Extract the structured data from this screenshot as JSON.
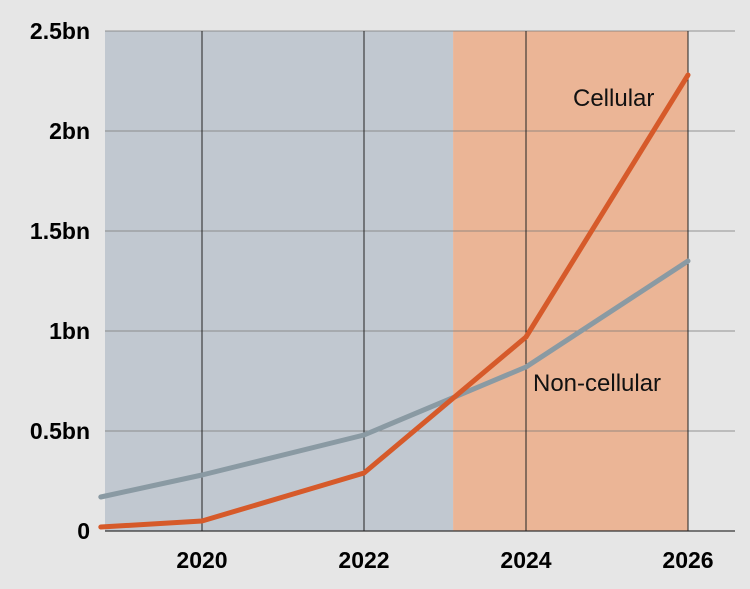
{
  "chart_data": {
    "type": "line",
    "title": "",
    "xlabel": "",
    "ylabel": "",
    "xlim": [
      2018.75,
      2026.2
    ],
    "ylim": [
      0,
      2.5
    ],
    "x_ticks": [
      {
        "value": 2020,
        "label": "2020"
      },
      {
        "value": 2022,
        "label": "2022"
      },
      {
        "value": 2024,
        "label": "2024"
      },
      {
        "value": 2026,
        "label": "2026"
      }
    ],
    "y_ticks": [
      {
        "value": 0,
        "label": "0"
      },
      {
        "value": 0.5,
        "label": "0.5bn"
      },
      {
        "value": 1,
        "label": "1bn"
      },
      {
        "value": 1.5,
        "label": "1.5bn"
      },
      {
        "value": 2,
        "label": "2bn"
      },
      {
        "value": 2.5,
        "label": "2.5bn"
      }
    ],
    "grid": true,
    "shaded_regions": [
      {
        "from": 2018.75,
        "to": 2023.1,
        "color": "#c1c8d0"
      },
      {
        "from": 2023.1,
        "to": 2026,
        "color": "#ebb596"
      }
    ],
    "series": [
      {
        "name": "Cellular",
        "color": "#d65a2a",
        "x": [
          2018.75,
          2020,
          2022,
          2024,
          2026
        ],
        "values": [
          0.02,
          0.05,
          0.29,
          0.97,
          2.28
        ]
      },
      {
        "name": "Non-cellular",
        "color": "#8a9aa3",
        "x": [
          2018.75,
          2020,
          2022,
          2024,
          2026
        ],
        "values": [
          0.17,
          0.28,
          0.48,
          0.82,
          1.35
        ]
      }
    ]
  }
}
